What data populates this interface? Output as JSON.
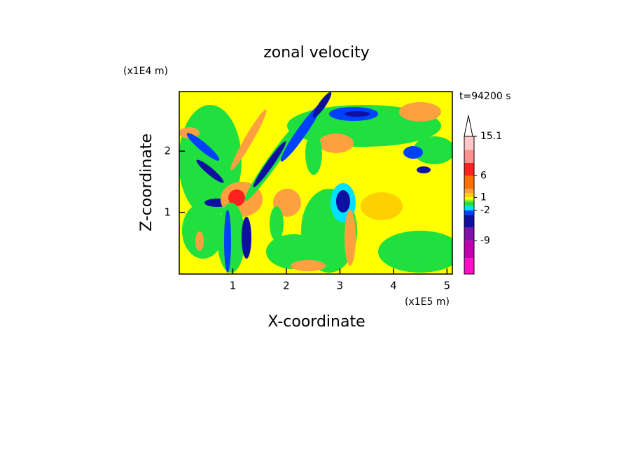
{
  "chart_data": {
    "type": "contour",
    "title": "zonal velocity",
    "xlabel": "X-coordinate",
    "ylabel": "Z-coordinate",
    "x_unit": "(x1E5 m)",
    "y_unit": "(x1E4 m)",
    "annotation": "t=94200 s",
    "xlim": [
      0,
      5.1
    ],
    "xticks": [
      1,
      2,
      3,
      4,
      5
    ],
    "ylim": [
      0,
      2.97
    ],
    "yticks": [
      1,
      2
    ],
    "colorbar": {
      "levels": [
        -16.7,
        -13,
        -9,
        -6,
        -3,
        -2,
        -1,
        0,
        0.5,
        1,
        2,
        3,
        6,
        9,
        12,
        15.1
      ],
      "colors": [
        "#ff10c8",
        "#c000b0",
        "#8010a8",
        "#1010a0",
        "#0040ff",
        "#00e0ff",
        "#20e040",
        "#90f020",
        "#ffff00",
        "#ffd000",
        "#ffa040",
        "#ff7000",
        "#ff2020",
        "#ff9090",
        "#ffc8c8"
      ],
      "ticks": [
        15.1,
        6,
        1,
        -2,
        -9
      ]
    }
  }
}
